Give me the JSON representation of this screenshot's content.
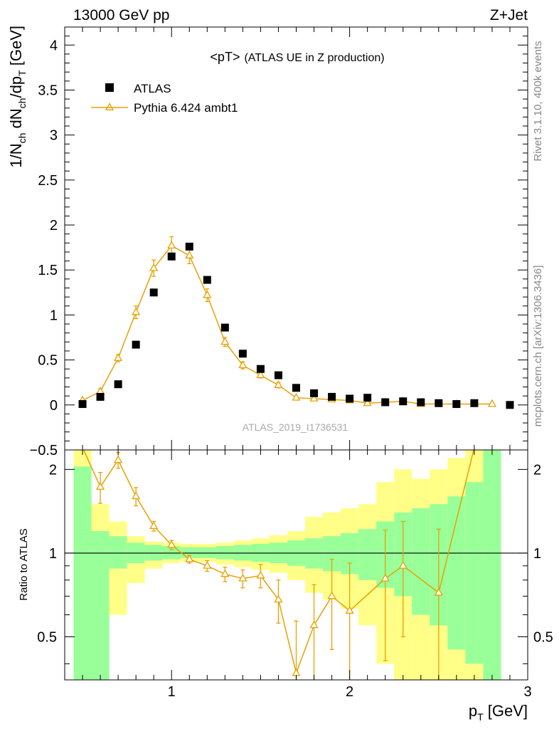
{
  "header": {
    "left": "13000 GeV pp",
    "right": "Z+Jet"
  },
  "side_labels": {
    "rivet": "Rivet 3.1.10,  400k events",
    "mcplots": "mcplots.cern.ch [arXiv:1306.3436]"
  },
  "analysis_id": "ATLAS_2019_I1736531",
  "colors": {
    "data": "#000000",
    "mc": "#e8a000",
    "band_inner": "#99ff99",
    "band_outer": "#ffff88"
  },
  "chart_data": [
    {
      "type": "scatter",
      "title": "<pT>",
      "subtitle": "(ATLAS UE in Z production)",
      "xlabel": "p_T [GeV]",
      "ylabel": "1/N_ch dN_ch/dp_T [GeV]",
      "xlim": [
        0.4,
        3.0
      ],
      "ylim": [
        -0.5,
        4.2
      ],
      "y_ticks": [
        "−0.5",
        "0",
        "0.5",
        "1",
        "1.5",
        "2",
        "2.5",
        "3",
        "3.5",
        "4"
      ],
      "legend": [
        "ATLAS",
        "Pythia 6.424 ambt1"
      ],
      "legend_position": "top-left",
      "series": [
        {
          "name": "ATLAS",
          "marker": "square",
          "x": [
            0.5,
            0.6,
            0.7,
            0.8,
            0.9,
            1.0,
            1.1,
            1.2,
            1.3,
            1.4,
            1.5,
            1.6,
            1.7,
            1.8,
            1.9,
            2.0,
            2.1,
            2.2,
            2.3,
            2.4,
            2.5,
            2.6,
            2.7,
            2.9
          ],
          "y": [
            0.01,
            0.09,
            0.23,
            0.67,
            1.25,
            1.65,
            1.76,
            1.39,
            0.86,
            0.57,
            0.4,
            0.33,
            0.19,
            0.13,
            0.09,
            0.07,
            0.08,
            0.03,
            0.04,
            0.03,
            0.02,
            0.01,
            0.02,
            0.0
          ]
        },
        {
          "name": "Pythia 6.424 ambt1",
          "marker": "open-triangle",
          "x": [
            0.5,
            0.6,
            0.7,
            0.8,
            0.9,
            1.0,
            1.1,
            1.2,
            1.3,
            1.4,
            1.5,
            1.6,
            1.7,
            1.8,
            1.9,
            2.0,
            2.1,
            2.2,
            2.3,
            2.4,
            2.5,
            2.6,
            2.7,
            2.8
          ],
          "y": [
            0.05,
            0.15,
            0.52,
            1.03,
            1.52,
            1.77,
            1.66,
            1.22,
            0.7,
            0.44,
            0.33,
            0.22,
            0.08,
            0.07,
            0.06,
            0.05,
            0.02,
            0.03,
            0.04,
            0.01,
            0.01,
            0.01,
            0.01,
            0.01
          ],
          "err": [
            0.02,
            0.03,
            0.04,
            0.07,
            0.09,
            0.1,
            0.09,
            0.07,
            0.05,
            0.04,
            0.03,
            0.03,
            0.02,
            0.02,
            0.02,
            0.01,
            0.01,
            0.01,
            0.01,
            0.01,
            0.01,
            0.01,
            0.01,
            0.01
          ]
        }
      ]
    },
    {
      "type": "line",
      "ylabel": "Ratio to ATLAS",
      "xlabel": "p_T [GeV]",
      "xlim": [
        0.4,
        3.0
      ],
      "ylim": [
        0.35,
        2.35
      ],
      "x_ticks": [
        "1",
        "2",
        "3"
      ],
      "y_ticks": [
        "0.5",
        "1",
        "2"
      ],
      "bands": {
        "edges": [
          0.45,
          0.55,
          0.65,
          0.75,
          0.85,
          0.95,
          1.05,
          1.15,
          1.25,
          1.35,
          1.45,
          1.55,
          1.65,
          1.75,
          1.85,
          1.95,
          2.05,
          2.15,
          2.25,
          2.35,
          2.45,
          2.55,
          2.65,
          2.75,
          2.85
        ],
        "inner_low": [
          0.35,
          0.35,
          0.88,
          0.92,
          0.94,
          0.95,
          0.96,
          0.96,
          0.95,
          0.94,
          0.93,
          0.92,
          0.9,
          0.88,
          0.86,
          0.84,
          0.8,
          0.75,
          0.7,
          0.6,
          0.55,
          0.45,
          0.4,
          0.35
        ],
        "inner_high": [
          2.05,
          1.2,
          1.15,
          1.09,
          1.07,
          1.06,
          1.05,
          1.05,
          1.06,
          1.07,
          1.08,
          1.09,
          1.11,
          1.13,
          1.15,
          1.18,
          1.22,
          1.3,
          1.4,
          1.45,
          1.5,
          1.6,
          1.8,
          2.35
        ],
        "outer_low": [
          0.35,
          0.35,
          0.6,
          0.78,
          0.88,
          0.92,
          0.93,
          0.93,
          0.91,
          0.89,
          0.87,
          0.85,
          0.8,
          0.72,
          0.68,
          0.63,
          0.55,
          0.4,
          0.35,
          0.35,
          0.35,
          0.35,
          0.35,
          0.35
        ],
        "outer_high": [
          2.35,
          1.5,
          1.3,
          1.15,
          1.1,
          1.09,
          1.08,
          1.08,
          1.09,
          1.11,
          1.13,
          1.16,
          1.2,
          1.35,
          1.4,
          1.45,
          1.5,
          1.8,
          2.0,
          1.85,
          2.0,
          2.2,
          2.35,
          2.35
        ]
      },
      "series": [
        {
          "name": "Pythia 6.424 ambt1",
          "x": [
            0.6,
            0.7,
            0.8,
            0.9,
            1.0,
            1.1,
            1.2,
            1.3,
            1.4,
            1.5,
            1.6,
            1.7,
            1.8,
            1.9,
            2.0,
            2.2,
            2.3,
            2.5
          ],
          "y": [
            1.73,
            2.16,
            1.6,
            1.25,
            1.07,
            0.95,
            0.9,
            0.84,
            0.81,
            0.83,
            0.68,
            0.37,
            0.55,
            0.7,
            0.62,
            0.81,
            0.9,
            0.72
          ],
          "err": [
            0.22,
            0.14,
            0.12,
            0.05,
            0.04,
            0.03,
            0.04,
            0.05,
            0.06,
            0.08,
            0.12,
            0.2,
            0.22,
            0.25,
            0.3,
            0.4,
            0.4,
            0.5
          ]
        }
      ]
    }
  ]
}
